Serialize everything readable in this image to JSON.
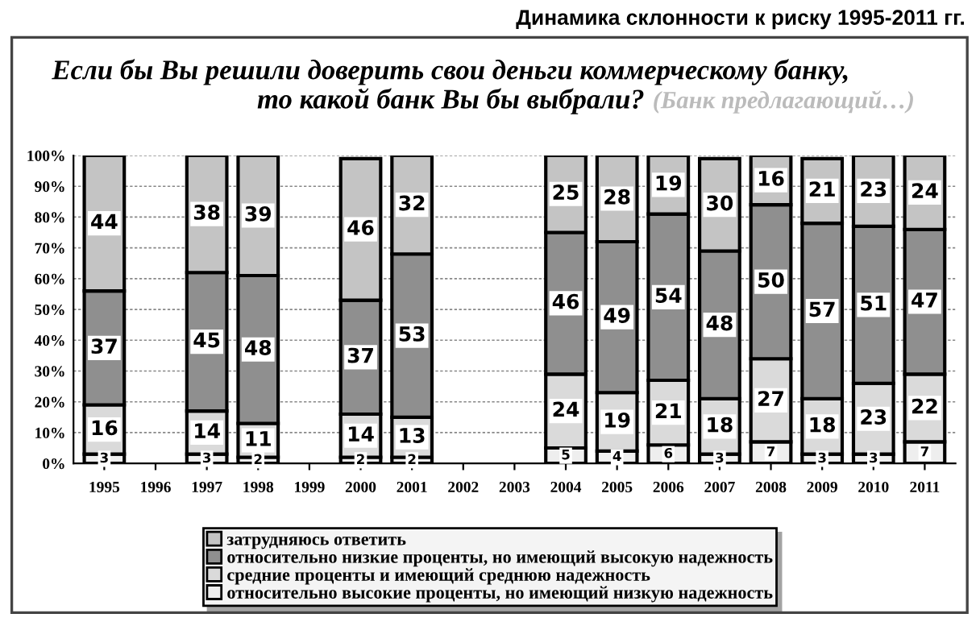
{
  "chart_data": {
    "type": "bar",
    "stacked": true,
    "title": "Динамика склонности к риску 1995-2011 гг.",
    "subtitle": "Если бы Вы решили доверить свои деньги коммерческому банку,\nто какой банк Вы бы выбрали?",
    "annotations": [
      "(Банк предлагающий…)"
    ],
    "categories": [
      "1995",
      "1996",
      "1997",
      "1998",
      "1999",
      "2000",
      "2001",
      "2002",
      "2003",
      "2004",
      "2005",
      "2006",
      "2007",
      "2008",
      "2009",
      "2010",
      "2011"
    ],
    "series": [
      {
        "name": "относительно высокие проценты, но имеющий низкую надежность",
        "color": "#eeeeee",
        "values": [
          3,
          null,
          3,
          2,
          null,
          2,
          2,
          null,
          null,
          5,
          4,
          6,
          3,
          7,
          3,
          3,
          7
        ]
      },
      {
        "name": "средние проценты и имеющий среднюю надежность",
        "color": "#dadada",
        "values": [
          16,
          null,
          14,
          11,
          null,
          14,
          13,
          null,
          null,
          24,
          19,
          21,
          18,
          27,
          18,
          23,
          22
        ]
      },
      {
        "name": "относительно низкие проценты, но имеющий высокую надежность",
        "color": "#8f8f8f",
        "values": [
          37,
          null,
          45,
          48,
          null,
          37,
          53,
          null,
          null,
          46,
          49,
          54,
          48,
          50,
          57,
          51,
          47
        ]
      },
      {
        "name": "затрудняюсь ответить",
        "color": "#c4c4c4",
        "values": [
          44,
          null,
          38,
          39,
          null,
          46,
          32,
          null,
          null,
          25,
          28,
          19,
          30,
          16,
          21,
          23,
          24
        ]
      }
    ],
    "ylim": [
      0,
      100
    ],
    "yticks": [
      {
        "value": 0,
        "label": "0%"
      },
      {
        "value": 10,
        "label": "10%"
      },
      {
        "value": 20,
        "label": "20%"
      },
      {
        "value": 30,
        "label": "30%"
      },
      {
        "value": 40,
        "label": "40%"
      },
      {
        "value": 50,
        "label": "50%"
      },
      {
        "value": 60,
        "label": "60%"
      },
      {
        "value": 70,
        "label": "70%"
      },
      {
        "value": 80,
        "label": "80%"
      },
      {
        "value": 90,
        "label": "90%"
      },
      {
        "value": 100,
        "label": "100%"
      }
    ],
    "grid": "y",
    "legend": "bottom",
    "data_labels": true
  }
}
